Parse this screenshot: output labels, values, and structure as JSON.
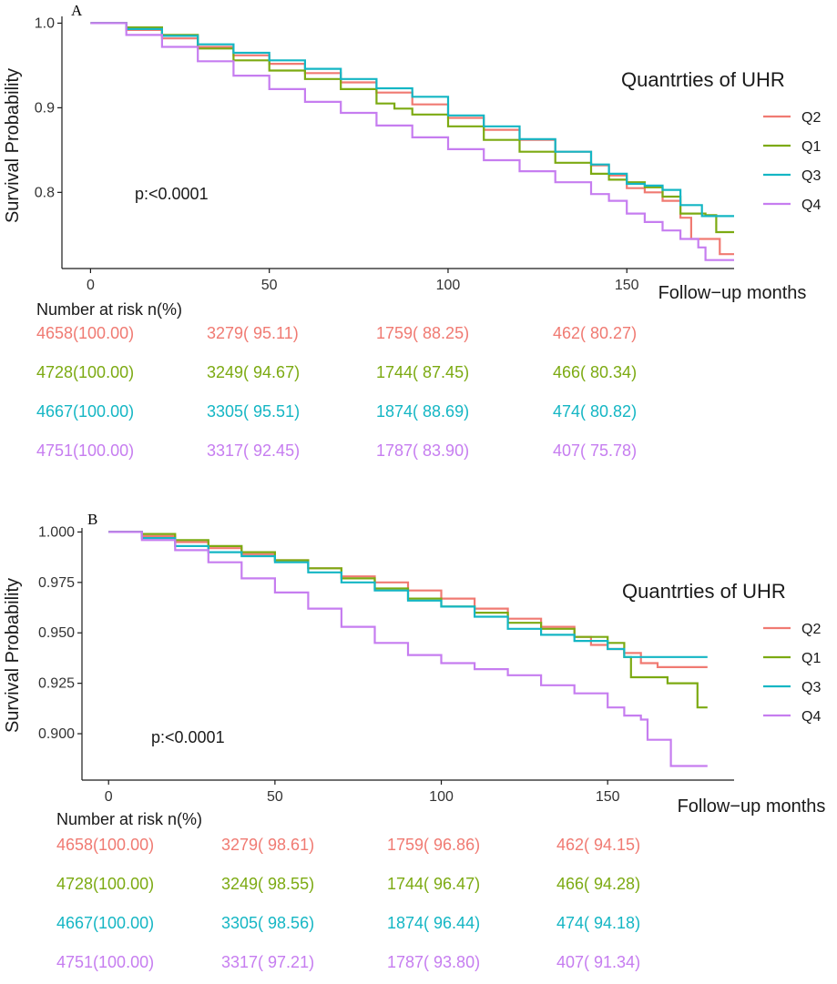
{
  "colors": {
    "Q2": "#F07A72",
    "Q1": "#7CAA12",
    "Q3": "#14B6C4",
    "Q4": "#C67DF0",
    "axis": "#1a1a1a"
  },
  "chart_data": [
    {
      "type": "line",
      "panel_label": "A",
      "ylabel": "Survival Probability",
      "xlabel": "Follow−up months",
      "xlim": [
        -8,
        180
      ],
      "ylim": [
        0.71,
        1.008
      ],
      "x_ticks": [
        0,
        50,
        100,
        150
      ],
      "x_tick_labels": [
        "0",
        "50",
        "100",
        "150"
      ],
      "y_ticks": [
        1.0,
        0.9,
        0.8
      ],
      "y_tick_labels": [
        "1.0",
        "0.9",
        "0.8"
      ],
      "legend_title": "Quantrties of UHR",
      "pvalue_text": "p:<0.0001",
      "series": [
        {
          "name": "Q2",
          "color_key": "Q2",
          "points": [
            [
              0,
              1.0
            ],
            [
              10,
              0.992
            ],
            [
              20,
              0.982
            ],
            [
              30,
              0.972
            ],
            [
              40,
              0.962
            ],
            [
              50,
              0.952
            ],
            [
              60,
              0.941
            ],
            [
              70,
              0.93
            ],
            [
              80,
              0.918
            ],
            [
              90,
              0.904
            ],
            [
              100,
              0.888
            ],
            [
              110,
              0.874
            ],
            [
              120,
              0.862
            ],
            [
              130,
              0.848
            ],
            [
              140,
              0.832
            ],
            [
              145,
              0.82
            ],
            [
              150,
              0.805
            ],
            [
              155,
              0.8
            ],
            [
              160,
              0.79
            ],
            [
              165,
              0.77
            ],
            [
              168,
              0.745
            ],
            [
              175,
              0.745
            ],
            [
              176,
              0.727
            ],
            [
              180,
              0.727
            ]
          ]
        },
        {
          "name": "Q1",
          "color_key": "Q1",
          "points": [
            [
              0,
              1.0
            ],
            [
              10,
              0.995
            ],
            [
              20,
              0.986
            ],
            [
              30,
              0.97
            ],
            [
              40,
              0.956
            ],
            [
              50,
              0.944
            ],
            [
              60,
              0.934
            ],
            [
              70,
              0.922
            ],
            [
              80,
              0.905
            ],
            [
              85,
              0.899
            ],
            [
              90,
              0.892
            ],
            [
              100,
              0.878
            ],
            [
              110,
              0.862
            ],
            [
              120,
              0.848
            ],
            [
              130,
              0.835
            ],
            [
              140,
              0.822
            ],
            [
              145,
              0.815
            ],
            [
              150,
              0.812
            ],
            [
              155,
              0.806
            ],
            [
              160,
              0.795
            ],
            [
              165,
              0.775
            ],
            [
              172,
              0.773
            ],
            [
              175,
              0.753
            ],
            [
              180,
              0.753
            ]
          ]
        },
        {
          "name": "Q3",
          "color_key": "Q3",
          "points": [
            [
              0,
              1.0
            ],
            [
              10,
              0.993
            ],
            [
              20,
              0.985
            ],
            [
              30,
              0.975
            ],
            [
              40,
              0.965
            ],
            [
              50,
              0.956
            ],
            [
              60,
              0.946
            ],
            [
              70,
              0.934
            ],
            [
              80,
              0.923
            ],
            [
              90,
              0.913
            ],
            [
              100,
              0.891
            ],
            [
              110,
              0.878
            ],
            [
              120,
              0.863
            ],
            [
              130,
              0.848
            ],
            [
              140,
              0.833
            ],
            [
              145,
              0.822
            ],
            [
              150,
              0.81
            ],
            [
              155,
              0.808
            ],
            [
              160,
              0.803
            ],
            [
              165,
              0.785
            ],
            [
              170,
              0.785
            ],
            [
              171,
              0.772
            ],
            [
              180,
              0.772
            ]
          ]
        },
        {
          "name": "Q4",
          "color_key": "Q4",
          "points": [
            [
              0,
              1.0
            ],
            [
              10,
              0.986
            ],
            [
              20,
              0.972
            ],
            [
              30,
              0.955
            ],
            [
              40,
              0.938
            ],
            [
              50,
              0.922
            ],
            [
              60,
              0.907
            ],
            [
              70,
              0.894
            ],
            [
              80,
              0.879
            ],
            [
              90,
              0.865
            ],
            [
              100,
              0.851
            ],
            [
              110,
              0.838
            ],
            [
              120,
              0.825
            ],
            [
              130,
              0.812
            ],
            [
              140,
              0.798
            ],
            [
              145,
              0.79
            ],
            [
              150,
              0.775
            ],
            [
              155,
              0.765
            ],
            [
              160,
              0.755
            ],
            [
              165,
              0.745
            ],
            [
              170,
              0.735
            ],
            [
              172,
              0.72
            ],
            [
              180,
              0.72
            ]
          ]
        }
      ],
      "risk_table": {
        "title": "Number at risk n(%)",
        "rows": [
          {
            "group": "Q2",
            "cells": [
              "4658(100.00)",
              "3279( 95.11)",
              "1759( 88.25)",
              "462( 80.27)"
            ]
          },
          {
            "group": "Q1",
            "cells": [
              "4728(100.00)",
              "3249( 94.67)",
              "1744( 87.45)",
              "466( 80.34)"
            ]
          },
          {
            "group": "Q3",
            "cells": [
              "4667(100.00)",
              "3305( 95.51)",
              "1874( 88.69)",
              "474( 80.82)"
            ]
          },
          {
            "group": "Q4",
            "cells": [
              "4751(100.00)",
              "3317( 92.45)",
              "1787( 83.90)",
              "407( 75.78)"
            ]
          }
        ]
      }
    },
    {
      "type": "line",
      "panel_label": "B",
      "ylabel": "Survival Probability",
      "xlabel": "Follow−up months",
      "xlim": [
        -8,
        188
      ],
      "ylim": [
        0.877,
        1.002
      ],
      "x_ticks": [
        0,
        50,
        100,
        150
      ],
      "x_tick_labels": [
        "0",
        "50",
        "100",
        "150"
      ],
      "y_ticks": [
        1.0,
        0.975,
        0.95,
        0.925,
        0.9
      ],
      "y_tick_labels": [
        "1.000",
        "0.975",
        "0.950",
        "0.925",
        "0.900"
      ],
      "legend_title": "Quantrties of UHR",
      "pvalue_text": "p:<0.0001",
      "series": [
        {
          "name": "Q2",
          "color_key": "Q2",
          "points": [
            [
              0,
              1.0
            ],
            [
              10,
              0.998
            ],
            [
              20,
              0.995
            ],
            [
              30,
              0.992
            ],
            [
              40,
              0.989
            ],
            [
              50,
              0.986
            ],
            [
              60,
              0.982
            ],
            [
              70,
              0.978
            ],
            [
              80,
              0.975
            ],
            [
              90,
              0.971
            ],
            [
              100,
              0.967
            ],
            [
              110,
              0.962
            ],
            [
              120,
              0.957
            ],
            [
              130,
              0.953
            ],
            [
              140,
              0.948
            ],
            [
              145,
              0.944
            ],
            [
              150,
              0.942
            ],
            [
              155,
              0.94
            ],
            [
              160,
              0.935
            ],
            [
              165,
              0.933
            ],
            [
              180,
              0.933
            ]
          ]
        },
        {
          "name": "Q1",
          "color_key": "Q1",
          "points": [
            [
              0,
              1.0
            ],
            [
              10,
              0.999
            ],
            [
              20,
              0.996
            ],
            [
              30,
              0.993
            ],
            [
              40,
              0.99
            ],
            [
              50,
              0.986
            ],
            [
              60,
              0.982
            ],
            [
              70,
              0.977
            ],
            [
              80,
              0.972
            ],
            [
              90,
              0.967
            ],
            [
              100,
              0.963
            ],
            [
              110,
              0.96
            ],
            [
              120,
              0.955
            ],
            [
              130,
              0.952
            ],
            [
              140,
              0.948
            ],
            [
              150,
              0.945
            ],
            [
              155,
              0.938
            ],
            [
              157,
              0.928
            ],
            [
              165,
              0.928
            ],
            [
              168,
              0.925
            ],
            [
              175,
              0.925
            ],
            [
              177,
              0.913
            ],
            [
              180,
              0.913
            ]
          ]
        },
        {
          "name": "Q3",
          "color_key": "Q3",
          "points": [
            [
              0,
              1.0
            ],
            [
              10,
              0.997
            ],
            [
              20,
              0.993
            ],
            [
              30,
              0.99
            ],
            [
              40,
              0.988
            ],
            [
              50,
              0.985
            ],
            [
              60,
              0.98
            ],
            [
              70,
              0.975
            ],
            [
              80,
              0.971
            ],
            [
              90,
              0.966
            ],
            [
              100,
              0.963
            ],
            [
              110,
              0.958
            ],
            [
              120,
              0.952
            ],
            [
              130,
              0.949
            ],
            [
              140,
              0.946
            ],
            [
              150,
              0.942
            ],
            [
              155,
              0.938
            ],
            [
              160,
              0.938
            ],
            [
              180,
              0.938
            ]
          ]
        },
        {
          "name": "Q4",
          "color_key": "Q4",
          "points": [
            [
              0,
              1.0
            ],
            [
              10,
              0.996
            ],
            [
              20,
              0.991
            ],
            [
              30,
              0.985
            ],
            [
              40,
              0.977
            ],
            [
              50,
              0.97
            ],
            [
              60,
              0.962
            ],
            [
              70,
              0.953
            ],
            [
              80,
              0.945
            ],
            [
              90,
              0.939
            ],
            [
              100,
              0.935
            ],
            [
              110,
              0.932
            ],
            [
              120,
              0.929
            ],
            [
              130,
              0.924
            ],
            [
              140,
              0.92
            ],
            [
              150,
              0.913
            ],
            [
              155,
              0.909
            ],
            [
              160,
              0.907
            ],
            [
              162,
              0.897
            ],
            [
              168,
              0.897
            ],
            [
              169,
              0.884
            ],
            [
              180,
              0.884
            ]
          ]
        }
      ],
      "risk_table": {
        "title": "Number at risk n(%)",
        "rows": [
          {
            "group": "Q2",
            "cells": [
              "4658(100.00)",
              "3279( 98.61)",
              "1759( 96.86)",
              "462( 94.15)"
            ]
          },
          {
            "group": "Q1",
            "cells": [
              "4728(100.00)",
              "3249( 98.55)",
              "1744( 96.47)",
              "466( 94.28)"
            ]
          },
          {
            "group": "Q3",
            "cells": [
              "4667(100.00)",
              "3305( 98.56)",
              "1874( 96.44)",
              "474( 94.18)"
            ]
          },
          {
            "group": "Q4",
            "cells": [
              "4751(100.00)",
              "3317( 97.21)",
              "1787( 93.80)",
              "407( 91.34)"
            ]
          }
        ]
      }
    }
  ]
}
